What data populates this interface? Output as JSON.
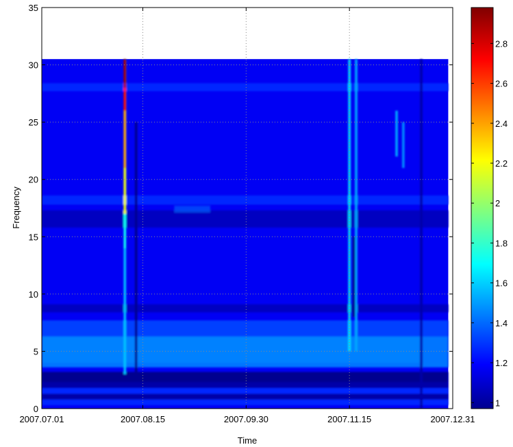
{
  "chart_data": {
    "type": "heatmap",
    "title": "",
    "xlabel": "Time",
    "ylabel": "Frequency",
    "xlim": [
      "2007.07.01",
      "2007.12.31"
    ],
    "ylim": [
      0,
      35
    ],
    "x_ticks": [
      "2007.07.01",
      "2007.08.15",
      "2007.09.30",
      "2007.11.15",
      "2007.12.31"
    ],
    "y_ticks": [
      "0",
      "5",
      "10",
      "15",
      "20",
      "25",
      "30",
      "35"
    ],
    "data_extent": {
      "x": [
        "2007.07.01",
        "2007.12.29"
      ],
      "y": [
        0,
        30.5
      ]
    },
    "grid": "dotted",
    "colormap": "jet",
    "colorbar": {
      "range": [
        0.97,
        2.98
      ],
      "ticks": [
        "1",
        "1.2",
        "1.4",
        "1.6",
        "1.8",
        "2",
        "2.2",
        "2.4",
        "2.6",
        "2.8"
      ]
    },
    "background_level": 1.2,
    "horizontal_bands": [
      {
        "frequency_range": [
          0.3,
          0.8
        ],
        "level": 1.3
      },
      {
        "frequency_range": [
          0.8,
          1.3
        ],
        "level": 1.05
      },
      {
        "frequency_range": [
          1.3,
          1.8
        ],
        "level": 1.3
      },
      {
        "frequency_range": [
          1.8,
          2.3
        ],
        "level": 1.05
      },
      {
        "frequency_range": [
          2.3,
          3.2
        ],
        "level": 1.0
      },
      {
        "frequency_range": [
          3.6,
          6.3
        ],
        "level": 1.45
      },
      {
        "frequency_range": [
          6.3,
          7.7
        ],
        "level": 1.35
      },
      {
        "frequency_range": [
          8.4,
          9.1
        ],
        "level": 1.1
      },
      {
        "frequency_range": [
          15.8,
          17.3
        ],
        "level": 1.1
      },
      {
        "frequency_range": [
          17.8,
          18.6
        ],
        "level": 1.3
      },
      {
        "frequency_range": [
          27.7,
          28.4
        ],
        "level": 1.3
      }
    ],
    "vertical_features": [
      {
        "date": "2007.08.07",
        "frequency_range": [
          14,
          30.5
        ],
        "level": 1.75
      },
      {
        "date": "2007.08.07",
        "frequency_range": [
          17,
          21
        ],
        "level": 2.2
      },
      {
        "date": "2007.08.07",
        "frequency_range": [
          21,
          26
        ],
        "level": 2.4
      },
      {
        "date": "2007.08.07",
        "frequency_range": [
          26,
          28
        ],
        "level": 2.7
      },
      {
        "date": "2007.08.07",
        "frequency_range": [
          28,
          30.5
        ],
        "level": 2.9
      },
      {
        "date": "2007.08.07",
        "frequency_range": [
          3,
          14
        ],
        "level": 1.6
      },
      {
        "date": "2007.08.12",
        "frequency_range": [
          3,
          25
        ],
        "level": 1.0
      },
      {
        "date": "2007.11.15",
        "frequency_range": [
          5,
          30.5
        ],
        "level": 1.65
      },
      {
        "date": "2007.11.18",
        "frequency_range": [
          5,
          30.5
        ],
        "level": 1.55
      },
      {
        "date": "2007.11.17",
        "frequency_range": [
          8,
          15
        ],
        "level": 1.0
      },
      {
        "date": "2007.12.17",
        "frequency_range": [
          0,
          30.5
        ],
        "level": 1.05
      },
      {
        "date": "2007.12.06",
        "frequency_range": [
          22,
          26
        ],
        "level": 1.55
      },
      {
        "date": "2007.12.09",
        "frequency_range": [
          21,
          25
        ],
        "level": 1.5
      }
    ],
    "blobs": [
      {
        "date_range": [
          "2007.08.29",
          "2007.09.14"
        ],
        "frequency_range": [
          17.1,
          17.7
        ],
        "level": 1.45
      },
      {
        "date_range": [
          "2007.07.01",
          "2007.12.17"
        ],
        "frequency_range": [
          4.0,
          6.3
        ],
        "level": 1.5
      }
    ]
  }
}
